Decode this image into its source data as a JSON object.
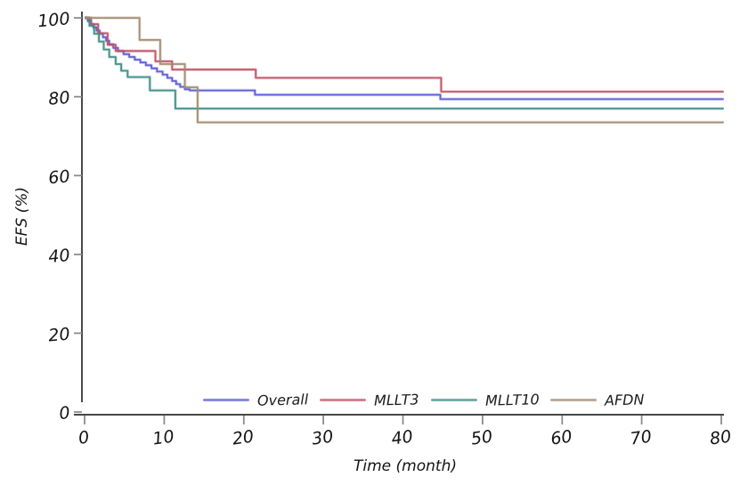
{
  "figure": {
    "background": "#ffffff",
    "axis_color": "#2b2b2b",
    "tick_color": "#8c8c8c",
    "x_ticks": [
      0,
      10,
      20,
      30,
      40,
      50,
      60,
      70,
      80
    ],
    "y_ticks": [
      0,
      20,
      40,
      60,
      80,
      100
    ]
  },
  "legend": [
    {
      "label": "Overall",
      "color": "#5b5bd6"
    },
    {
      "label": "MLLT3",
      "color": "#c05166"
    },
    {
      "label": "MLLT10",
      "color": "#3e8e86"
    },
    {
      "label": "AFDN",
      "color": "#a08b70"
    }
  ],
  "chart_data": {
    "type": "line",
    "subtype": "kaplan-meier-step",
    "title": "",
    "xlabel": "Time (month)",
    "ylabel": "EFS (%)",
    "xlim": [
      0,
      80
    ],
    "ylim": [
      0,
      100
    ],
    "grid": false,
    "legend_position": "bottom-center-inside",
    "series": [
      {
        "name": "Overall",
        "color": "#5b5bd6",
        "points": [
          [
            0,
            100
          ],
          [
            0.4,
            99.2
          ],
          [
            0.8,
            98.4
          ],
          [
            1.1,
            97.6
          ],
          [
            1.5,
            96.8
          ],
          [
            1.9,
            96.0
          ],
          [
            2.3,
            95.1
          ],
          [
            2.7,
            94.2
          ],
          [
            3.1,
            93.3
          ],
          [
            3.6,
            92.4
          ],
          [
            4.2,
            91.6
          ],
          [
            4.9,
            90.8
          ],
          [
            5.6,
            90.1
          ],
          [
            6.3,
            89.4
          ],
          [
            7.0,
            88.7
          ],
          [
            7.7,
            88.0
          ],
          [
            8.4,
            87.2
          ],
          [
            9.1,
            86.4
          ],
          [
            9.8,
            85.6
          ],
          [
            10.4,
            84.8
          ],
          [
            11.0,
            84.0
          ],
          [
            11.5,
            83.2
          ],
          [
            12.0,
            82.5
          ],
          [
            12.6,
            81.9
          ],
          [
            13.2,
            81.6
          ],
          [
            21.4,
            80.5
          ],
          [
            44.7,
            79.4
          ]
        ]
      },
      {
        "name": "MLLT3",
        "color": "#c05166",
        "points": [
          [
            0,
            100
          ],
          [
            0.8,
            98.4
          ],
          [
            1.7,
            96.1
          ],
          [
            2.9,
            93.2
          ],
          [
            3.9,
            91.6
          ],
          [
            8.9,
            89.0
          ],
          [
            11.0,
            86.9
          ],
          [
            21.5,
            84.8
          ],
          [
            44.8,
            81.3
          ]
        ]
      },
      {
        "name": "MLLT10",
        "color": "#3e8e86",
        "points": [
          [
            0,
            100
          ],
          [
            0.6,
            98.0
          ],
          [
            1.2,
            96.0
          ],
          [
            1.8,
            94.0
          ],
          [
            2.4,
            92.0
          ],
          [
            3.1,
            90.1
          ],
          [
            3.9,
            88.3
          ],
          [
            4.6,
            86.6
          ],
          [
            5.4,
            85.0
          ],
          [
            8.2,
            81.6
          ],
          [
            11.4,
            77.0
          ]
        ]
      },
      {
        "name": "AFDN",
        "color": "#a08b70",
        "points": [
          [
            0,
            100
          ],
          [
            6.9,
            94.4
          ],
          [
            9.5,
            88.3
          ],
          [
            12.6,
            82.4
          ],
          [
            14.2,
            73.5
          ]
        ]
      }
    ]
  }
}
